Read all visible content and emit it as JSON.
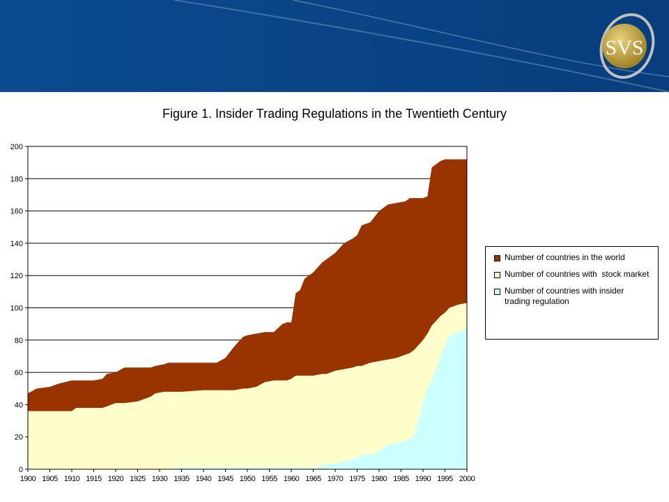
{
  "logo": "SVS",
  "chart_data": {
    "type": "area",
    "title": "Figure 1. Insider Trading Regulations in the Twentieth Century",
    "x": [
      1900,
      1902,
      1905,
      1907,
      1910,
      1911,
      1915,
      1917,
      1918,
      1920,
      1922,
      1925,
      1928,
      1929,
      1931,
      1932,
      1935,
      1940,
      1943,
      1945,
      1947,
      1949,
      1950,
      1952,
      1954,
      1956,
      1958,
      1959,
      1960,
      1961,
      1962,
      1963,
      1965,
      1967,
      1968,
      1970,
      1972,
      1974,
      1975,
      1976,
      1978,
      1980,
      1982,
      1984,
      1986,
      1987,
      1988,
      1989,
      1990,
      1991,
      1992,
      1993,
      1994,
      1995,
      1996,
      1998,
      2000
    ],
    "series": [
      {
        "name": "Number of countries in the world",
        "color": "#993300",
        "values": [
          47,
          50,
          51,
          53,
          55,
          55,
          55,
          56,
          59,
          60,
          63,
          63,
          63,
          64,
          65,
          66,
          66,
          66,
          66,
          69,
          76,
          82,
          83,
          84,
          85,
          85,
          90,
          91,
          91,
          109,
          111,
          118,
          122,
          128,
          130,
          134,
          140,
          143,
          145,
          151,
          153,
          160,
          164,
          165,
          166,
          168,
          168,
          168,
          168,
          169,
          187,
          189,
          191,
          192,
          192,
          192,
          192
        ]
      },
      {
        "name": "Number of countries with  stock market",
        "color": "#ffffcc",
        "values": [
          36,
          36,
          36,
          36,
          36,
          38,
          38,
          38,
          39,
          41,
          41,
          42,
          45,
          47,
          48,
          48,
          48,
          49,
          49,
          49,
          49,
          50,
          50,
          51,
          54,
          55,
          55,
          55,
          56,
          58,
          58,
          58,
          58,
          59,
          59,
          61,
          62,
          63,
          64,
          64,
          66,
          67,
          68,
          69,
          71,
          72,
          74,
          77,
          80,
          84,
          89,
          92,
          95,
          97,
          100,
          102,
          103
        ]
      },
      {
        "name": "Number of countries with insider trading regulation",
        "color": "#ccffff",
        "values": [
          0,
          0,
          0,
          0,
          0,
          0,
          0,
          0,
          0,
          0,
          0,
          0,
          0,
          0,
          0,
          0,
          1,
          1,
          1,
          1,
          1,
          1,
          1,
          1,
          1,
          1,
          1,
          1,
          1,
          1,
          1,
          1,
          1,
          2,
          3,
          3,
          5,
          6,
          7,
          9,
          9,
          11,
          15,
          16,
          18,
          19,
          21,
          31,
          41,
          50,
          55,
          62,
          70,
          77,
          83,
          85,
          87
        ]
      }
    ],
    "xlim": [
      1900,
      2000
    ],
    "xticks": [
      1900,
      1905,
      1910,
      1915,
      1920,
      1925,
      1930,
      1935,
      1940,
      1945,
      1950,
      1955,
      1960,
      1965,
      1970,
      1975,
      1980,
      1985,
      1990,
      1995,
      2000
    ],
    "ylim": [
      0,
      200
    ],
    "yticks": [
      0,
      20,
      40,
      60,
      80,
      100,
      120,
      140,
      160,
      180,
      200
    ],
    "grid": true
  }
}
